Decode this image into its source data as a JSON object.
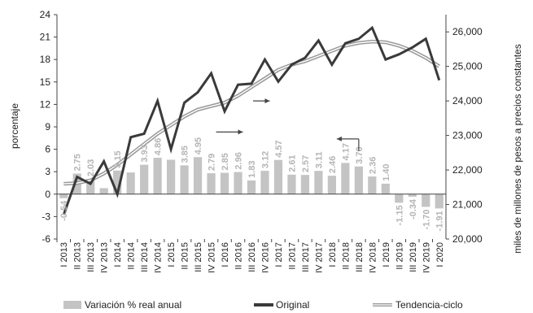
{
  "chart_data": {
    "type": "bar+line",
    "categories": [
      "I 2013",
      "II 2013",
      "III 2013",
      "IV 2013",
      "I 2014",
      "II 2014",
      "III 2014",
      "IV 2014",
      "I 2015",
      "II 2015",
      "III 2015",
      "IV 2015",
      "I 2016",
      "II 2016",
      "III 2016",
      "IV 2016",
      "I 2017",
      "II 2017",
      "III 2017",
      "IV 2017",
      "I 2018",
      "II 2018",
      "III 2018",
      "IV 2018",
      "I 2019",
      "II 2019",
      "III 2019",
      "IV 2019",
      "I 2020"
    ],
    "series": [
      {
        "name": "Variación % real anual",
        "kind": "bar",
        "axis": "left",
        "color": "#c4c4c4",
        "values": [
          -0.54,
          2.75,
          2.03,
          0.8,
          3.15,
          2.9,
          3.93,
          4.86,
          4.6,
          3.85,
          4.95,
          2.79,
          2.85,
          2.96,
          1.83,
          3.12,
          4.57,
          2.61,
          2.57,
          3.11,
          2.46,
          4.17,
          3.7,
          2.36,
          1.4,
          -1.15,
          -0.34,
          -1.7,
          -1.91
        ],
        "labels": [
          "-0.54",
          "2.75",
          "2.03",
          "",
          "3.15",
          "",
          "3.93",
          "4.86",
          "",
          "3.85",
          "4.95",
          "2.79",
          "2.85",
          "2.96",
          "1.83",
          "3.12",
          "4.57",
          "2.61",
          "2.57",
          "3.11",
          "2.46",
          "4.17",
          "3.70",
          "2.36",
          "1.40",
          "-1.15",
          "-0.34",
          "-1.70",
          "-1.91"
        ]
      },
      {
        "name": "Original",
        "kind": "line",
        "axis": "right",
        "color": "#3a3a3a",
        "values": [
          20700,
          21800,
          21600,
          22250,
          21300,
          22950,
          23050,
          24000,
          22600,
          23950,
          24250,
          24800,
          23700,
          24470,
          24500,
          25200,
          24560,
          25050,
          25250,
          25750,
          25050,
          25670,
          25800,
          26120,
          25200,
          25350,
          25550,
          25800,
          24600
        ]
      },
      {
        "name": "Tendencia-ciclo",
        "kind": "line",
        "axis": "right",
        "color": "#9a9a9a",
        "values": [
          21600,
          21620,
          21700,
          21900,
          22150,
          22450,
          22750,
          23050,
          23300,
          23550,
          23750,
          23850,
          23950,
          24150,
          24400,
          24650,
          24900,
          25050,
          25150,
          25300,
          25450,
          25600,
          25680,
          25720,
          25700,
          25600,
          25450,
          25250,
          25000
        ]
      }
    ],
    "left_axis": {
      "label": "porcentaje",
      "min": -6,
      "max": 24,
      "ticks": [
        "-6",
        "-3",
        "0",
        "3",
        "6",
        "9",
        "12",
        "15",
        "18",
        "21",
        "24"
      ]
    },
    "right_axis": {
      "label": "miles de millones de pesos a precios constantes",
      "min": 20000,
      "max": 26500,
      "ticks": [
        "20,000",
        "21,000",
        "22,000",
        "23,000",
        "24,000",
        "25,000",
        "26,000"
      ]
    },
    "legend": {
      "placement": "bottom",
      "items": [
        "Variación % real anual",
        "Original",
        "Tendencia-ciclo"
      ]
    }
  }
}
